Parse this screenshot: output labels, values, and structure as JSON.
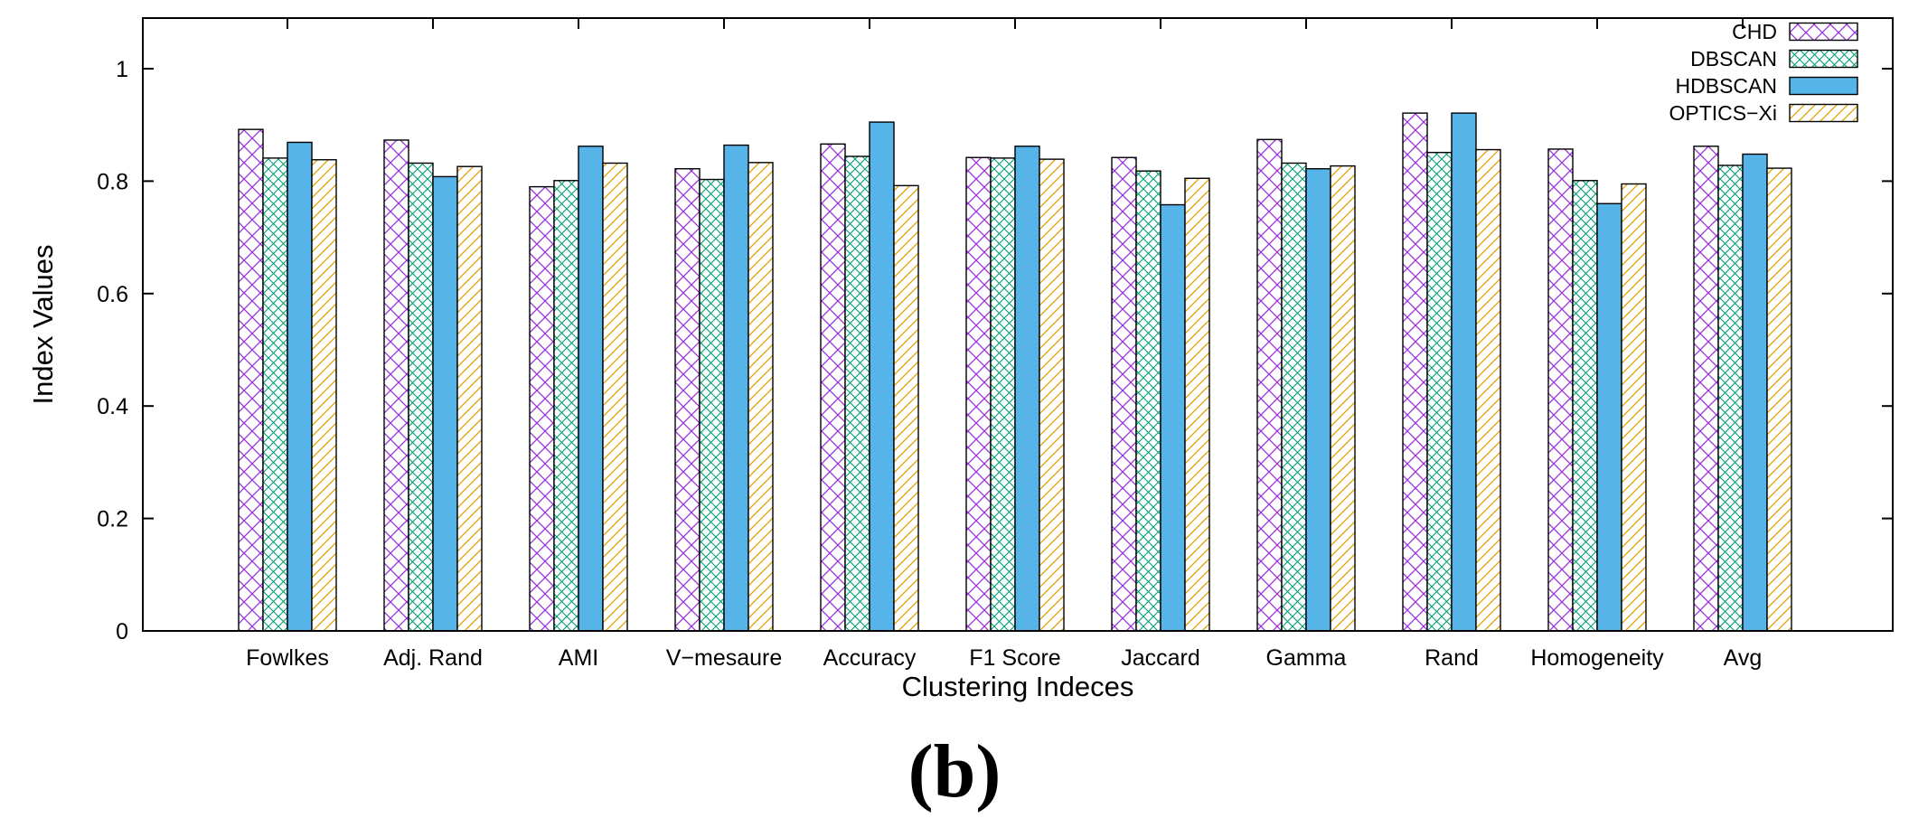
{
  "chart_data": {
    "type": "bar",
    "title": "",
    "xlabel": "Clustering Indeces",
    "ylabel": "Index Values",
    "ylim": [
      0,
      1.09
    ],
    "yticks": [
      0,
      0.2,
      0.4,
      0.6,
      0.8,
      1
    ],
    "ytick_labels": [
      "0",
      "0.2",
      "0.4",
      "0.6",
      "0.8",
      "1"
    ],
    "grid": false,
    "legend_position": "top-right",
    "categories": [
      "Fowlkes",
      "Adj. Rand",
      "AMI",
      "V−mesaure",
      "Accuracy",
      "F1 Score",
      "Jaccard",
      "Gamma",
      "Rand",
      "Homogeneity",
      "Avg"
    ],
    "series": [
      {
        "name": "CHD",
        "pattern": "crosshatch",
        "color": "#9b30d9",
        "values": [
          0.892,
          0.873,
          0.79,
          0.822,
          0.866,
          0.842,
          0.842,
          0.874,
          0.921,
          0.857,
          0.862
        ]
      },
      {
        "name": "DBSCAN",
        "pattern": "fine-crosshatch",
        "color": "#009e73",
        "values": [
          0.841,
          0.832,
          0.801,
          0.803,
          0.844,
          0.841,
          0.818,
          0.832,
          0.851,
          0.801,
          0.828
        ]
      },
      {
        "name": "HDBSCAN",
        "pattern": "solid",
        "color": "#56b4e9",
        "values": [
          0.869,
          0.808,
          0.862,
          0.864,
          0.905,
          0.862,
          0.758,
          0.822,
          0.921,
          0.76,
          0.848
        ]
      },
      {
        "name": "OPTICS−Xi",
        "pattern": "diagonal",
        "color": "#e69f00",
        "values": [
          0.838,
          0.826,
          0.832,
          0.833,
          0.792,
          0.839,
          0.805,
          0.827,
          0.856,
          0.795,
          0.823
        ]
      }
    ]
  },
  "caption": "(b)"
}
